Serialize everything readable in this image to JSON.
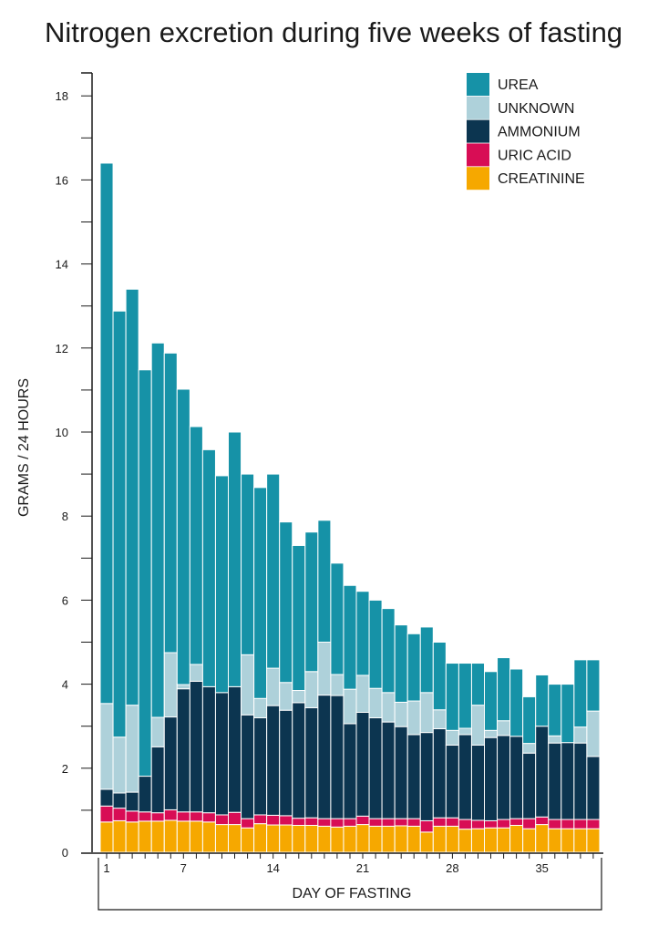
{
  "chart_data": {
    "type": "bar",
    "stacked": true,
    "title": "Nitrogen excretion during five weeks of fasting",
    "xlabel": "DAY OF FASTING",
    "ylabel": "GRAMS / 24 HOURS",
    "ylim": [
      0,
      18.5
    ],
    "y_ticks": [
      0,
      2,
      4,
      6,
      8,
      10,
      12,
      14,
      16,
      18
    ],
    "categories": [
      1,
      2,
      3,
      4,
      5,
      6,
      7,
      8,
      9,
      10,
      11,
      12,
      13,
      14,
      15,
      16,
      17,
      18,
      19,
      20,
      21,
      22,
      23,
      24,
      25,
      26,
      27,
      28,
      29,
      30,
      31,
      32,
      33,
      34,
      35,
      36,
      37,
      38,
      39
    ],
    "x_tick_labels": [
      "1",
      "7",
      "14",
      "21",
      "28",
      "35"
    ],
    "legend_position": "top-right",
    "series": [
      {
        "name": "CREATININE",
        "color": "#f6a800",
        "values": [
          0.72,
          0.75,
          0.72,
          0.74,
          0.74,
          0.76,
          0.74,
          0.74,
          0.72,
          0.66,
          0.66,
          0.58,
          0.68,
          0.65,
          0.65,
          0.64,
          0.64,
          0.62,
          0.6,
          0.62,
          0.66,
          0.62,
          0.62,
          0.63,
          0.62,
          0.48,
          0.62,
          0.62,
          0.55,
          0.56,
          0.58,
          0.58,
          0.64,
          0.56,
          0.66,
          0.56,
          0.56,
          0.56,
          0.56
        ]
      },
      {
        "name": "URIC ACID",
        "color": "#d80d55",
        "values": [
          0.38,
          0.3,
          0.26,
          0.22,
          0.2,
          0.25,
          0.22,
          0.22,
          0.22,
          0.23,
          0.29,
          0.22,
          0.21,
          0.23,
          0.22,
          0.17,
          0.18,
          0.18,
          0.2,
          0.18,
          0.2,
          0.18,
          0.18,
          0.17,
          0.18,
          0.27,
          0.2,
          0.2,
          0.23,
          0.2,
          0.17,
          0.2,
          0.16,
          0.24,
          0.18,
          0.22,
          0.22,
          0.22,
          0.22
        ]
      },
      {
        "name": "AMMONIUM",
        "color": "#0c3550",
        "values": [
          0.4,
          0.36,
          0.45,
          0.85,
          1.57,
          2.21,
          2.93,
          3.11,
          3.0,
          2.91,
          2.99,
          2.47,
          2.31,
          2.61,
          2.51,
          2.75,
          2.62,
          2.94,
          2.93,
          2.26,
          2.47,
          2.4,
          2.3,
          2.19,
          2.0,
          2.1,
          2.12,
          1.73,
          2.02,
          1.79,
          1.98,
          2.0,
          1.96,
          1.56,
          2.16,
          1.82,
          1.83,
          1.82,
          1.5
        ]
      },
      {
        "name": "UNKNOWN",
        "color": "#aed1da",
        "values": [
          2.04,
          1.33,
          2.07,
          0.0,
          0.7,
          1.53,
          0.1,
          0.4,
          0.0,
          0.0,
          0.0,
          1.43,
          0.46,
          0.89,
          0.66,
          0.29,
          0.86,
          1.26,
          0.5,
          0.82,
          0.88,
          0.7,
          0.7,
          0.58,
          0.8,
          0.95,
          0.45,
          0.35,
          0.15,
          0.95,
          0.17,
          0.35,
          0.0,
          0.23,
          0.0,
          0.17,
          0.0,
          0.38,
          1.08
        ]
      },
      {
        "name": "UREA",
        "color": "#1692a7",
        "values": [
          12.86,
          10.14,
          9.9,
          9.67,
          8.91,
          7.13,
          7.03,
          5.66,
          5.64,
          5.16,
          6.06,
          4.3,
          5.02,
          4.62,
          3.82,
          3.45,
          3.32,
          2.9,
          2.65,
          2.47,
          2.0,
          2.1,
          2.0,
          1.84,
          1.6,
          1.56,
          1.61,
          1.6,
          1.55,
          1.0,
          1.4,
          1.5,
          1.6,
          1.11,
          1.22,
          1.23,
          1.39,
          1.6,
          1.22
        ]
      }
    ],
    "legend_order": [
      "UREA",
      "UNKNOWN",
      "AMMONIUM",
      "URIC ACID",
      "CREATININE"
    ]
  }
}
